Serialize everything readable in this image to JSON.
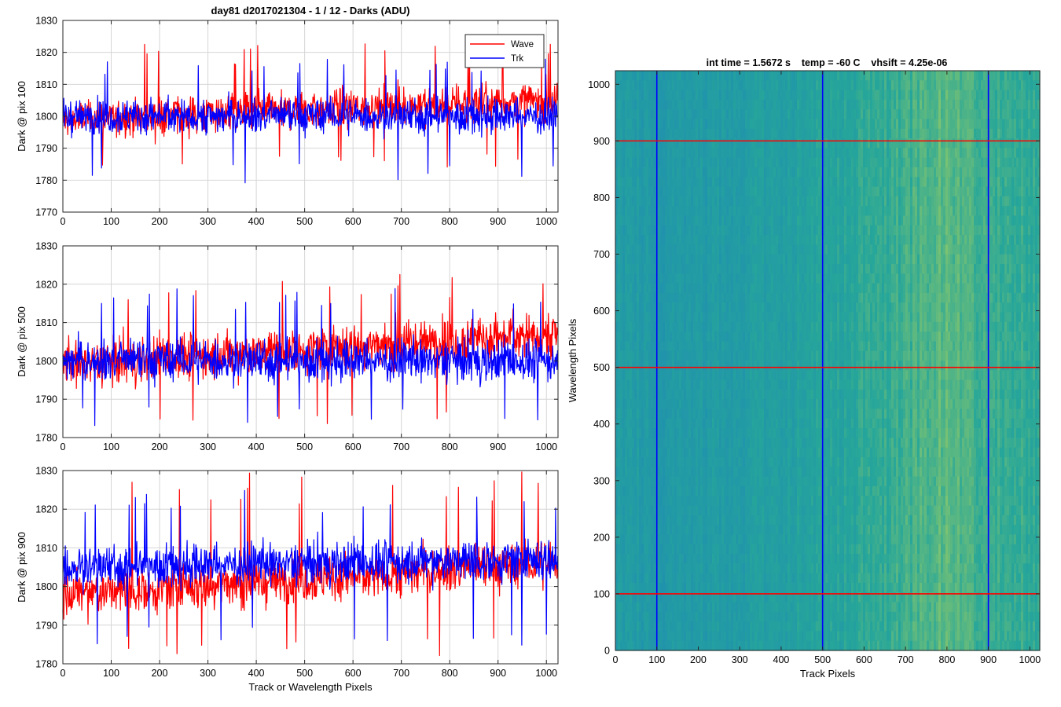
{
  "figure": {
    "suptitle": "day81 d2017021304 - 1 / 12 - Darks (ADU)",
    "heatmap_title": "int time = 1.5672 s    temp = -60 C    vhsift = 4.25e-06"
  },
  "colors": {
    "wave": "#ff0000",
    "trk": "#0000ff",
    "grid": "#d6d6d6",
    "heat_low": "#1f8fb0",
    "heat_mid": "#26a69a",
    "heat_high": "#8cc86a"
  },
  "chart_data": [
    {
      "type": "line",
      "title": "day81 d2017021304 - 1 / 12 - Darks (ADU)",
      "xlabel": "",
      "ylabel": "Dark @ pix 100",
      "xlim": [
        0,
        1024
      ],
      "ylim": [
        1770,
        1830
      ],
      "xticks": [
        0,
        100,
        200,
        300,
        400,
        500,
        600,
        700,
        800,
        900,
        1000
      ],
      "yticks": [
        1770,
        1780,
        1790,
        1800,
        1810,
        1820,
        1830
      ],
      "grid": true,
      "legend": {
        "position": "top-right",
        "entries": [
          "Wave",
          "Trk"
        ]
      },
      "series": [
        {
          "name": "Wave",
          "color": "#ff0000",
          "model": {
            "base_start": 1799,
            "base_end": 1805,
            "amplitude": 5.5,
            "spike_max": 1823,
            "spike_min": 1784
          }
        },
        {
          "name": "Trk",
          "color": "#0000ff",
          "model": {
            "base_start": 1800,
            "base_end": 1800,
            "amplitude": 5.0,
            "spike_max": 1818,
            "spike_min": 1779
          }
        }
      ]
    },
    {
      "type": "line",
      "title": "",
      "xlabel": "",
      "ylabel": "Dark @ pix 500",
      "xlim": [
        0,
        1024
      ],
      "ylim": [
        1780,
        1830
      ],
      "xticks": [
        0,
        100,
        200,
        300,
        400,
        500,
        600,
        700,
        800,
        900,
        1000
      ],
      "yticks": [
        1780,
        1790,
        1800,
        1810,
        1820,
        1830
      ],
      "grid": true,
      "series": [
        {
          "name": "Wave",
          "color": "#ff0000",
          "model": {
            "base_start": 1799,
            "base_end": 1807,
            "amplitude": 5.5,
            "spike_max": 1823,
            "spike_min": 1783
          }
        },
        {
          "name": "Trk",
          "color": "#0000ff",
          "model": {
            "base_start": 1800,
            "base_end": 1800,
            "amplitude": 5.0,
            "spike_max": 1819,
            "spike_min": 1783
          }
        }
      ]
    },
    {
      "type": "line",
      "title": "",
      "xlabel": "Track or Wavelength Pixels",
      "ylabel": "Dark @ pix 900",
      "xlim": [
        0,
        1024
      ],
      "ylim": [
        1780,
        1830
      ],
      "xticks": [
        0,
        100,
        200,
        300,
        400,
        500,
        600,
        700,
        800,
        900,
        1000
      ],
      "yticks": [
        1780,
        1790,
        1800,
        1810,
        1820,
        1830
      ],
      "grid": true,
      "series": [
        {
          "name": "Wave",
          "color": "#ff0000",
          "model": {
            "base_start": 1798,
            "base_end": 1806,
            "amplitude": 5.5,
            "spike_max": 1830,
            "spike_min": 1782
          }
        },
        {
          "name": "Trk",
          "color": "#0000ff",
          "model": {
            "base_start": 1805,
            "base_end": 1807,
            "amplitude": 5.0,
            "spike_max": 1825,
            "spike_min": 1784
          }
        }
      ]
    },
    {
      "type": "heatmap",
      "title": "int time = 1.5672 s    temp = -60 C    vhsift = 4.25e-06",
      "xlabel": "Track Pixels",
      "ylabel": "Wavelength Pixels",
      "xlim": [
        0,
        1024
      ],
      "ylim": [
        0,
        1024
      ],
      "xticks": [
        0,
        100,
        200,
        300,
        400,
        500,
        600,
        700,
        800,
        900,
        1000
      ],
      "yticks": [
        0,
        100,
        200,
        300,
        400,
        500,
        600,
        700,
        800,
        900,
        1000
      ],
      "vertical_lines": {
        "color": "#0000ff",
        "x": [
          100,
          500,
          900
        ]
      },
      "horizontal_lines": {
        "color": "#ff0000",
        "y": [
          100,
          500,
          900
        ]
      },
      "column_profile": [
        {
          "x": 0,
          "level": 0.3
        },
        {
          "x": 100,
          "level": 0.22
        },
        {
          "x": 300,
          "level": 0.28
        },
        {
          "x": 500,
          "level": 0.42
        },
        {
          "x": 650,
          "level": 0.55
        },
        {
          "x": 800,
          "level": 0.78
        },
        {
          "x": 880,
          "level": 0.62
        },
        {
          "x": 1024,
          "level": 0.52
        }
      ]
    }
  ]
}
